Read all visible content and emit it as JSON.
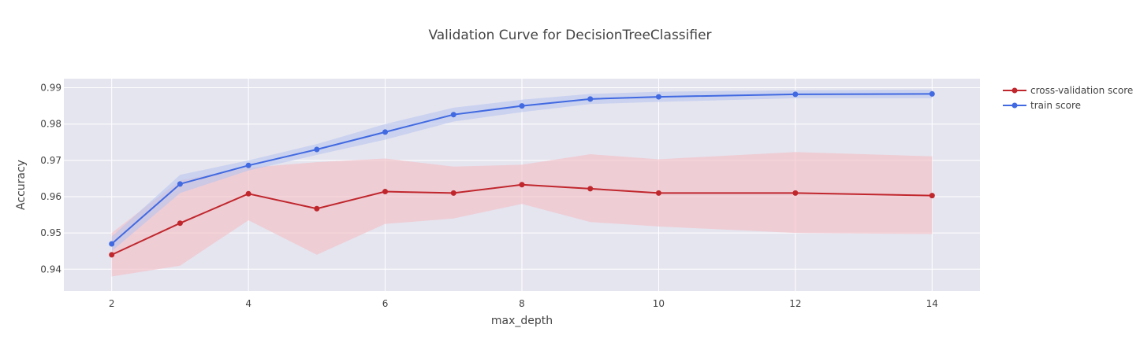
{
  "chart_data": {
    "type": "line",
    "title": "Validation Curve for DecisionTreeClassifier",
    "xlabel": "max_depth",
    "ylabel": "Accuracy",
    "x": [
      2,
      3,
      4,
      5,
      6,
      7,
      8,
      9,
      10,
      12,
      14
    ],
    "xlim": [
      1.3,
      14.7
    ],
    "ylim": [
      0.934,
      0.9925
    ],
    "xticks": [
      2,
      4,
      6,
      8,
      10,
      12,
      14
    ],
    "yticks": [
      0.94,
      0.95,
      0.96,
      0.97,
      0.98,
      0.99
    ],
    "grid": true,
    "legend_position": "top-right",
    "series": [
      {
        "name": "cross-validation score",
        "color": "#c0272d",
        "band_color": "#f4bcc3",
        "values": [
          0.944,
          0.9527,
          0.9608,
          0.9567,
          0.9614,
          0.961,
          0.9633,
          0.9622,
          0.961,
          0.961,
          0.9603
        ],
        "upper": [
          0.95,
          0.9645,
          0.968,
          0.9695,
          0.9705,
          0.9683,
          0.9688,
          0.9717,
          0.9703,
          0.9723,
          0.9711
        ],
        "lower": [
          0.938,
          0.941,
          0.9535,
          0.944,
          0.9525,
          0.954,
          0.958,
          0.953,
          0.9518,
          0.95,
          0.9497
        ]
      },
      {
        "name": "train score",
        "color": "#4169e1",
        "band_color": "#b8c4ee",
        "values": [
          0.947,
          0.9635,
          0.9686,
          0.973,
          0.9778,
          0.9826,
          0.985,
          0.9869,
          0.9875,
          0.9882,
          0.9883
        ],
        "upper": [
          0.949,
          0.966,
          0.97,
          0.9745,
          0.98,
          0.9845,
          0.9867,
          0.9883,
          0.9889,
          0.9893,
          0.9895
        ],
        "lower": [
          0.945,
          0.961,
          0.9672,
          0.9715,
          0.9757,
          0.9807,
          0.9833,
          0.9855,
          0.9861,
          0.9871,
          0.9871
        ]
      }
    ]
  },
  "colors": {
    "plot_background": "#e5e5ef",
    "grid": "#ffffff"
  }
}
